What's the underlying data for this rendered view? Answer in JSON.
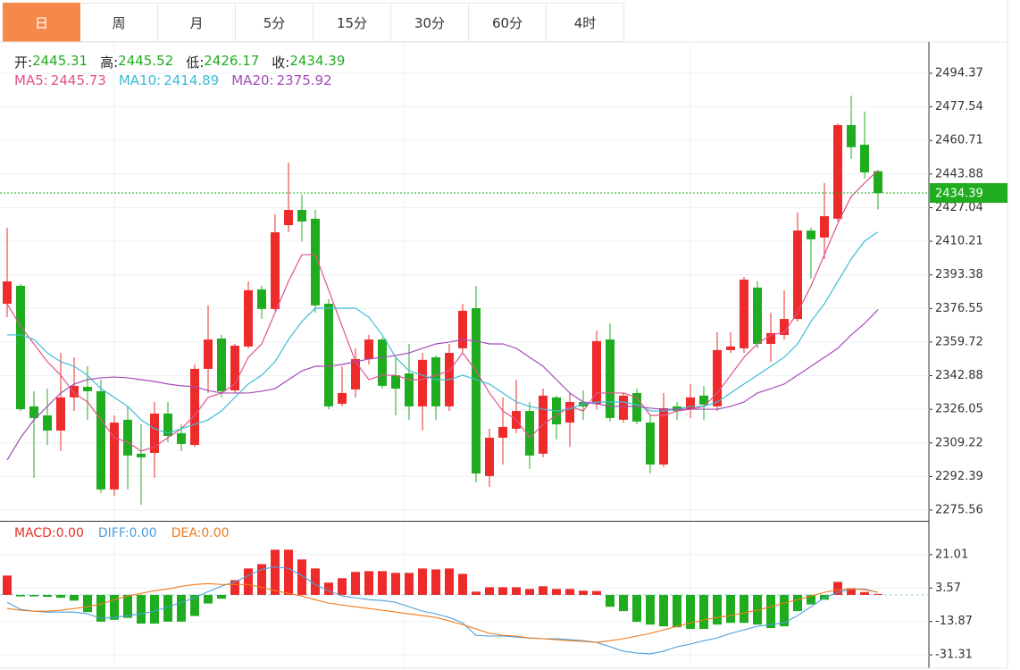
{
  "tabs": [
    "日",
    "周",
    "月",
    "5分",
    "15分",
    "30分",
    "60分",
    "4时"
  ],
  "active_tab": 0,
  "chart_data": [
    {
      "type": "candlestick",
      "ylim": [
        2270.19,
        2509.58
      ],
      "yticks": [
        2494.37,
        2477.54,
        2460.71,
        2443.88,
        2427.04,
        2410.21,
        2393.38,
        2376.55,
        2359.72,
        2342.88,
        2326.05,
        2309.22,
        2292.39,
        2275.56
      ],
      "grid": true,
      "up_color": "#ee2b2b",
      "down_color": "#1fad1f",
      "ohlc_labels": [
        "开:",
        "高:",
        "低:",
        "收:"
      ],
      "open": [
        2378.9,
        2387.9,
        2327.5,
        2323.0,
        2315.4,
        2332.0,
        2337.3,
        2335.1,
        2285.9,
        2320.8,
        2303.8,
        2304.2,
        2323.9,
        2314.1,
        2308.2,
        2346.3,
        2361.5,
        2335.5,
        2357.5,
        2386.1,
        2376.3,
        2418.3,
        2425.9,
        2421.5,
        2378.9,
        2328.8,
        2336.0,
        2351.2,
        2361.0,
        2343.1,
        2344.0,
        2327.5,
        2352.1,
        2327.5,
        2356.6,
        2376.7,
        2292.6,
        2311.8,
        2316.3,
        2325.2,
        2303.8,
        2332.0,
        2319.4,
        2329.7,
        2328.8,
        2361.0,
        2320.8,
        2334.2,
        2319.4,
        2298.4,
        2327.5,
        2326.1,
        2332.9,
        2327.5,
        2355.7,
        2356.6,
        2387.0,
        2358.8,
        2363.3,
        2371.3,
        2415.6,
        2412.1,
        2421.5,
        2468.4,
        2458.6,
        2445.31
      ],
      "high": [
        2417.0,
        2388.8,
        2335.1,
        2336.4,
        2354.3,
        2352.1,
        2347.6,
        2340.9,
        2323.0,
        2327.5,
        2318.5,
        2329.7,
        2329.7,
        2318.5,
        2348.5,
        2378.1,
        2363.3,
        2358.8,
        2390.1,
        2387.9,
        2423.7,
        2449.7,
        2433.5,
        2425.9,
        2381.2,
        2347.6,
        2356.6,
        2363.3,
        2361.9,
        2352.1,
        2358.8,
        2354.3,
        2353.0,
        2358.8,
        2378.9,
        2387.9,
        2316.3,
        2332.0,
        2340.9,
        2329.7,
        2336.4,
        2332.9,
        2334.2,
        2335.5,
        2365.5,
        2369.1,
        2334.2,
        2336.4,
        2323.0,
        2334.2,
        2329.7,
        2338.7,
        2337.8,
        2364.6,
        2364.6,
        2392.4,
        2390.1,
        2374.5,
        2385.7,
        2424.6,
        2417.0,
        2439.4,
        2469.3,
        2483.2,
        2475.2,
        2445.52
      ],
      "low": [
        2372.2,
        2325.2,
        2291.7,
        2308.2,
        2305.1,
        2325.2,
        2320.8,
        2284.1,
        2282.7,
        2285.9,
        2278.3,
        2291.7,
        2309.6,
        2305.1,
        2307.3,
        2334.2,
        2332.0,
        2334.2,
        2356.6,
        2371.3,
        2375.4,
        2414.7,
        2410.3,
        2374.5,
        2326.1,
        2327.5,
        2332.0,
        2348.5,
        2336.4,
        2323.0,
        2320.8,
        2315.4,
        2320.8,
        2325.2,
        2354.3,
        2289.4,
        2287.2,
        2298.4,
        2314.1,
        2296.2,
        2302.0,
        2310.9,
        2307.3,
        2320.8,
        2326.1,
        2319.9,
        2319.4,
        2318.5,
        2293.9,
        2297.1,
        2320.8,
        2321.7,
        2320.8,
        2325.2,
        2354.3,
        2354.3,
        2356.6,
        2349.9,
        2361.0,
        2370.0,
        2391.5,
        2401.3,
        2420.1,
        2451.4,
        2441.6,
        2426.17
      ],
      "close": [
        2390.1,
        2326.1,
        2321.7,
        2315.4,
        2332.0,
        2337.8,
        2335.1,
        2285.9,
        2319.4,
        2302.9,
        2302.0,
        2323.9,
        2312.7,
        2308.7,
        2346.3,
        2361.0,
        2335.1,
        2357.9,
        2385.7,
        2376.3,
        2414.7,
        2425.9,
        2420.1,
        2378.1,
        2327.5,
        2334.2,
        2351.2,
        2361.0,
        2337.8,
        2336.4,
        2327.5,
        2350.8,
        2327.5,
        2354.3,
        2375.4,
        2293.9,
        2311.8,
        2317.2,
        2325.2,
        2302.9,
        2332.9,
        2318.5,
        2329.7,
        2327.5,
        2360.2,
        2321.7,
        2332.9,
        2319.9,
        2298.4,
        2326.6,
        2325.2,
        2332.0,
        2328.4,
        2355.7,
        2357.5,
        2391.0,
        2358.8,
        2364.2,
        2371.3,
        2415.6,
        2411.2,
        2422.8,
        2468.4,
        2457.3,
        2444.7,
        2434.39
      ],
      "series": [
        {
          "name": "MA5",
          "color": "#e0538c",
          "values": [
            2378.9,
            2367.7,
            2358.8,
            2349.9,
            2343.1,
            2334.2,
            2329.7,
            2320.8,
            2311.8,
            2309.6,
            2305.1,
            2307.3,
            2311.8,
            2316.3,
            2323.0,
            2332.0,
            2334.2,
            2338.7,
            2352.1,
            2358.8,
            2374.5,
            2390.1,
            2403.5,
            2403.5,
            2385.7,
            2367.7,
            2349.9,
            2340.9,
            2343.1,
            2343.1,
            2340.9,
            2340.9,
            2343.1,
            2345.3,
            2354.3,
            2345.3,
            2334.2,
            2325.2,
            2320.8,
            2311.8,
            2318.5,
            2323.0,
            2327.5,
            2325.2,
            2334.2,
            2334.2,
            2334.2,
            2332.0,
            2323.0,
            2323.0,
            2325.2,
            2326.1,
            2327.5,
            2334.2,
            2343.1,
            2352.1,
            2358.8,
            2363.3,
            2364.6,
            2374.5,
            2387.9,
            2403.5,
            2419.2,
            2432.6,
            2439.4,
            2445.73
          ]
        },
        {
          "name": "MA10",
          "color": "#3dbcd6",
          "values": [
            2363.3,
            2363.3,
            2361.0,
            2354.3,
            2349.9,
            2347.6,
            2343.1,
            2336.4,
            2332.0,
            2327.5,
            2320.8,
            2316.3,
            2314.1,
            2316.3,
            2318.5,
            2320.8,
            2325.2,
            2332.0,
            2338.7,
            2343.1,
            2349.9,
            2361.0,
            2370.0,
            2376.7,
            2376.7,
            2376.7,
            2376.7,
            2372.2,
            2363.3,
            2352.1,
            2345.3,
            2343.1,
            2340.9,
            2340.9,
            2343.1,
            2340.9,
            2338.7,
            2334.2,
            2329.7,
            2327.5,
            2326.1,
            2325.2,
            2326.1,
            2328.8,
            2329.7,
            2329.7,
            2329.7,
            2328.4,
            2325.2,
            2325.2,
            2326.1,
            2327.5,
            2327.5,
            2329.7,
            2334.2,
            2338.7,
            2343.1,
            2347.6,
            2352.1,
            2358.8,
            2370.0,
            2378.9,
            2390.1,
            2401.3,
            2410.3,
            2414.89
          ]
        },
        {
          "name": "MA20",
          "color": "#a44cb8",
          "values": [
            2300.6,
            2311.8,
            2320.8,
            2327.5,
            2334.2,
            2338.7,
            2340.9,
            2341.8,
            2342.2,
            2341.8,
            2340.9,
            2340.0,
            2338.7,
            2337.8,
            2337.3,
            2335.5,
            2334.2,
            2334.2,
            2334.2,
            2335.1,
            2336.4,
            2340.9,
            2345.3,
            2347.6,
            2347.6,
            2348.5,
            2349.9,
            2351.2,
            2352.1,
            2353.0,
            2354.3,
            2356.6,
            2358.8,
            2359.7,
            2361.0,
            2360.2,
            2358.8,
            2358.8,
            2356.6,
            2352.1,
            2347.6,
            2340.9,
            2334.2,
            2329.7,
            2328.8,
            2327.5,
            2327.5,
            2327.5,
            2326.6,
            2326.1,
            2326.1,
            2326.1,
            2326.1,
            2326.1,
            2327.5,
            2329.7,
            2334.2,
            2336.4,
            2338.7,
            2343.1,
            2347.6,
            2352.1,
            2356.6,
            2363.3,
            2369.1,
            2375.92
          ]
        }
      ]
    },
    {
      "type": "macd",
      "ylim": [
        -38.29,
        38.22
      ],
      "yticks": [
        21.01,
        3.57,
        -13.87,
        -31.31
      ],
      "grid": true,
      "up_color": "#ee2b2b",
      "down_color": "#1fad1f",
      "series": [
        {
          "name": "MACD",
          "color": "#e8322a",
          "legend_value": "0.00",
          "values": [
            10.1,
            -0.8,
            -0.8,
            -1.0,
            -1.5,
            -3.0,
            -9.0,
            -14.0,
            -13.0,
            -12.0,
            -15.0,
            -15.0,
            -14.0,
            -14.0,
            -11.0,
            -4.5,
            -2.0,
            7.7,
            13.8,
            16.1,
            23.6,
            23.6,
            18.5,
            13.8,
            6.4,
            8.7,
            12.0,
            12.4,
            12.4,
            11.5,
            11.5,
            13.8,
            13.3,
            13.8,
            11.0,
            1.7,
            4.0,
            4.0,
            4.0,
            3.1,
            4.5,
            3.1,
            3.1,
            2.2,
            2.0,
            -6.2,
            -8.5,
            -14.1,
            -15.5,
            -16.4,
            -16.9,
            -17.8,
            -17.8,
            -15.5,
            -14.6,
            -14.6,
            -15.5,
            -17.3,
            -16.4,
            -8.5,
            -5.0,
            -2.5,
            6.8,
            3.5,
            1.5,
            0.5
          ]
        },
        {
          "name": "DIFF",
          "color": "#4a9fdc",
          "legend_value": "0.00",
          "values": [
            -3.9,
            -7.6,
            -8.5,
            -9.0,
            -9.0,
            -9.0,
            -9.9,
            -12.2,
            -11.8,
            -10.8,
            -9.9,
            -8.5,
            -6.2,
            -3.9,
            -1.5,
            1.7,
            4.5,
            6.8,
            10.1,
            13.3,
            14.7,
            13.8,
            10.1,
            5.4,
            2.2,
            -0.6,
            -1.5,
            -2.5,
            -2.9,
            -3.9,
            -6.2,
            -8.5,
            -9.9,
            -11.8,
            -14.6,
            -21.1,
            -21.5,
            -21.5,
            -22.0,
            -22.5,
            -22.9,
            -22.9,
            -23.4,
            -23.9,
            -24.8,
            -27.1,
            -29.4,
            -30.4,
            -30.8,
            -29.4,
            -27.1,
            -25.7,
            -23.9,
            -22.5,
            -20.1,
            -18.3,
            -16.4,
            -15.5,
            -14.6,
            -10.8,
            -6.2,
            -1.5,
            1.3,
            3.1,
            3.1,
            1.3
          ]
        },
        {
          "name": "DEA",
          "color": "#f07b1c",
          "legend_value": "0.00",
          "values": [
            -7.1,
            -8.0,
            -8.5,
            -8.5,
            -8.0,
            -7.1,
            -6.2,
            -4.8,
            -2.5,
            -0.6,
            0.8,
            2.2,
            3.1,
            4.5,
            5.4,
            5.9,
            5.4,
            5.4,
            5.4,
            4.0,
            2.2,
            0.8,
            -0.6,
            -2.5,
            -4.3,
            -5.3,
            -6.2,
            -7.1,
            -8.0,
            -9.0,
            -9.9,
            -10.8,
            -11.8,
            -13.6,
            -15.5,
            -17.8,
            -20.1,
            -21.1,
            -21.5,
            -22.5,
            -22.9,
            -23.4,
            -23.9,
            -24.3,
            -24.8,
            -23.9,
            -22.9,
            -21.5,
            -20.1,
            -18.3,
            -16.4,
            -14.6,
            -13.1,
            -11.8,
            -10.8,
            -9.4,
            -8.0,
            -6.2,
            -4.3,
            -2.5,
            -0.6,
            1.3,
            2.7,
            3.1,
            2.7,
            1.3
          ]
        }
      ]
    }
  ]
}
